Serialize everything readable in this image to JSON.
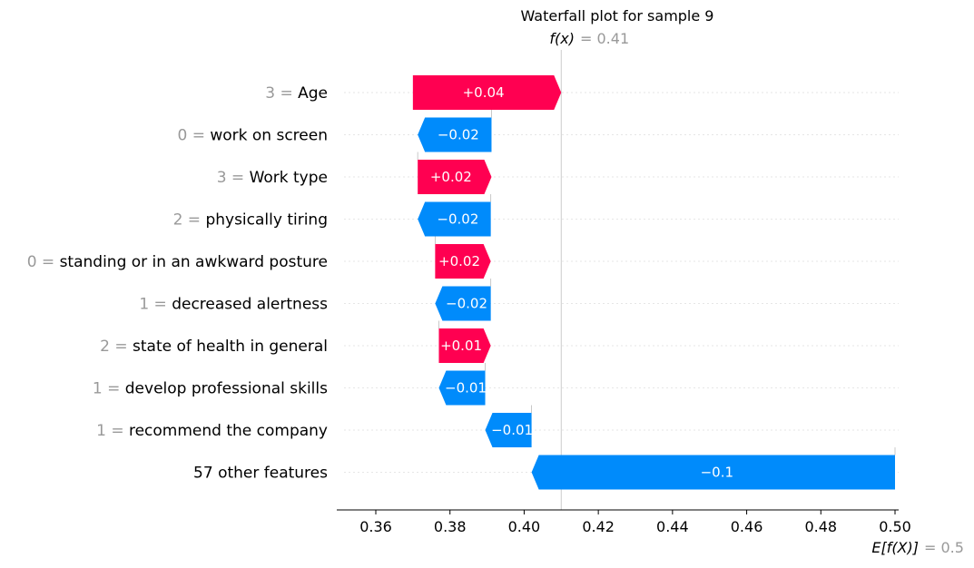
{
  "chart_data": {
    "type": "waterfall",
    "title": "Waterfall plot for sample 9",
    "fx_label": "f(x)",
    "fx_value_text": "= 0.41",
    "fx_value": 0.41,
    "base_label": "E[f(X)]",
    "base_value_text": "= 0.5",
    "base_value": 0.5,
    "xlim": [
      0.35,
      0.5
    ],
    "xticks": [
      "0.36",
      "0.38",
      "0.40",
      "0.42",
      "0.44",
      "0.46",
      "0.48",
      "0.50"
    ],
    "xtick_values": [
      0.36,
      0.38,
      0.4,
      0.42,
      0.44,
      0.46,
      0.48,
      0.5
    ],
    "colors": {
      "positive": "#ff0051",
      "negative": "#008bfb",
      "value_prefix": "#999999",
      "label": "#000000"
    },
    "features": [
      {
        "value": "3",
        "name": "Age",
        "start": 0.37,
        "end": 0.41,
        "label": "+0.04"
      },
      {
        "value": "0",
        "name": "work on screen",
        "start": 0.3912,
        "end": 0.3713,
        "label": "−0.02"
      },
      {
        "value": "3",
        "name": "Work type",
        "start": 0.3713,
        "end": 0.3912,
        "label": "+0.02"
      },
      {
        "value": "2",
        "name": "physically tiring",
        "start": 0.391,
        "end": 0.3713,
        "label": "−0.02"
      },
      {
        "value": "0",
        "name": "standing or in an awkward posture",
        "start": 0.376,
        "end": 0.391,
        "label": "+0.02"
      },
      {
        "value": "1",
        "name": "decreased alertness",
        "start": 0.391,
        "end": 0.376,
        "label": "−0.02"
      },
      {
        "value": "2",
        "name": "state of health in general",
        "start": 0.377,
        "end": 0.391,
        "label": "+0.01"
      },
      {
        "value": "1",
        "name": "develop professional skills",
        "start": 0.3895,
        "end": 0.377,
        "label": "−0.01"
      },
      {
        "value": "1",
        "name": "recommend the company",
        "start": 0.402,
        "end": 0.3895,
        "label": "−0.01"
      },
      {
        "value": "",
        "name": "57 other features",
        "start": 0.5,
        "end": 0.402,
        "label": "−0.1"
      }
    ]
  }
}
